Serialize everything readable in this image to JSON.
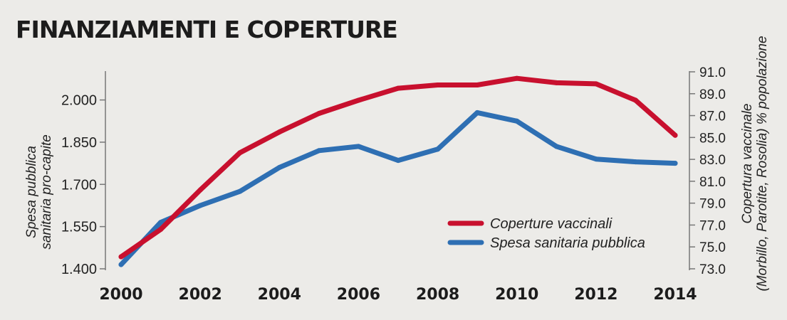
{
  "chart_data": {
    "type": "line",
    "title": "FINANZIAMENTI E COPERTURE",
    "x": [
      2000,
      2001,
      2002,
      2003,
      2004,
      2005,
      2006,
      2007,
      2008,
      2009,
      2010,
      2011,
      2012,
      2013,
      2014
    ],
    "x_ticks": [
      "2000",
      "2002",
      "2004",
      "2006",
      "2008",
      "2010",
      "2012",
      "2014"
    ],
    "xlim": [
      2000,
      2014
    ],
    "left_axis": {
      "label_line1": "Spesa pubblica",
      "label_line2": "sanitaria pro-capite",
      "ylim": [
        1400,
        2100
      ],
      "ticks": [
        1400,
        1550,
        1700,
        1850,
        2000
      ],
      "tick_labels": [
        "1.400",
        "1.550",
        "1.700",
        "1.850",
        "2.000"
      ]
    },
    "right_axis": {
      "label_line1": "Copertura vaccinale",
      "label_line2": "(Morbillo, Parotite, Rosolia) % popolazione",
      "ylim": [
        73,
        91
      ],
      "ticks": [
        73,
        75,
        77,
        79,
        81,
        83,
        85,
        87,
        89,
        91
      ],
      "tick_labels": [
        "73.0",
        "75.0",
        "77.0",
        "79.0",
        "81.0",
        "83.0",
        "85.0",
        "87.0",
        "89.0",
        "91.0"
      ]
    },
    "series": [
      {
        "name": "Coperture vaccinali",
        "axis": "right",
        "color": "#c8102e",
        "values": [
          74.1,
          76.6,
          80.2,
          83.6,
          85.5,
          87.2,
          88.4,
          89.5,
          89.8,
          89.8,
          90.4,
          90.0,
          89.9,
          88.4,
          85.2
        ]
      },
      {
        "name": "Spesa sanitaria pubblica",
        "axis": "left",
        "color": "#2e6fb3",
        "values": [
          1415,
          1565,
          1625,
          1675,
          1760,
          1820,
          1835,
          1785,
          1825,
          1955,
          1925,
          1835,
          1790,
          1780,
          1775
        ]
      }
    ],
    "legend_position": "bottom-right",
    "grid": false
  }
}
